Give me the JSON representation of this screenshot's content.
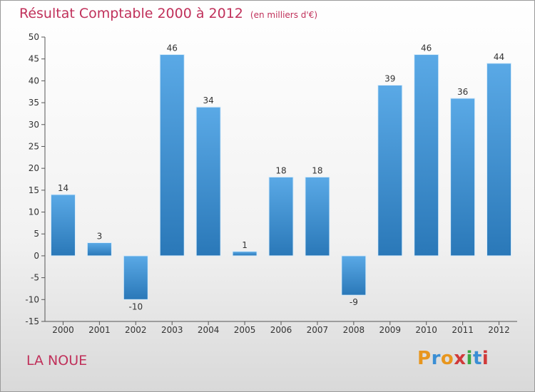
{
  "header": {
    "title": "Résultat Comptable 2000 à 2012",
    "unit": "(en milliers d'€)"
  },
  "footer": {
    "commune": "LA NOUE",
    "logo": {
      "letters": [
        "P",
        "r",
        "o",
        "x",
        "i",
        "t",
        "i"
      ],
      "colors": [
        "#e8961e",
        "#3a8ed4",
        "#e8961e",
        "#d03a3a",
        "#3aa843",
        "#3a8ed4",
        "#d03a3a"
      ]
    }
  },
  "colors": {
    "bar_light": "#5aa9e6",
    "bar_dark": "#2a78b8",
    "title": "#c0305a",
    "axis": "#555555"
  },
  "chart_data": {
    "type": "bar",
    "categories": [
      "2000",
      "2001",
      "2002",
      "2003",
      "2004",
      "2005",
      "2006",
      "2007",
      "2008",
      "2009",
      "2010",
      "2011",
      "2012"
    ],
    "values": [
      14,
      3,
      -10,
      46,
      34,
      1,
      18,
      18,
      -9,
      39,
      46,
      36,
      44
    ],
    "data_labels": [
      "14",
      "3",
      "-10",
      "46",
      "34",
      "1",
      "18",
      "18",
      "-9",
      "39",
      "46",
      "36",
      "44"
    ],
    "yticks": [
      50,
      45,
      40,
      35,
      30,
      25,
      20,
      15,
      10,
      5,
      0,
      -5,
      -10,
      -15
    ],
    "ylim": [
      -15,
      50
    ],
    "grid": false
  }
}
